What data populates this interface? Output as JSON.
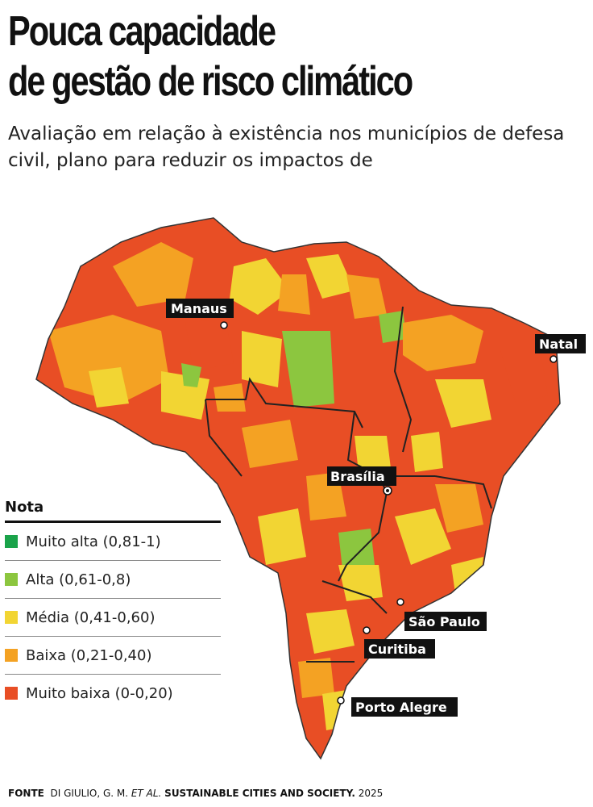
{
  "title_lines": [
    "Pouca capacidade",
    "de gestão de risco climático"
  ],
  "subtitle": "Avaliação em relação à existência nos municípios de defesa civil, plano para reduzir os impactos de",
  "legend": {
    "title": "Nota",
    "items": [
      {
        "label": "Muito alta (0,81-1)",
        "color": "#1aa34a"
      },
      {
        "label": "Alta (0,61-0,8)",
        "color": "#8cc63f"
      },
      {
        "label": "Média (0,41-0,60)",
        "color": "#f2d533"
      },
      {
        "label": "Baixa (0,21-0,40)",
        "color": "#f4a223"
      },
      {
        "label": "Muito baixa (0-0,20)",
        "color": "#e84e25"
      }
    ]
  },
  "cities": [
    "Manaus",
    "Natal",
    "Brasília",
    "São Paulo",
    "Curitiba",
    "Porto Alegre"
  ],
  "source": {
    "label": "FONTE",
    "authors": "DI GIULIO, G. M.",
    "etal": "ET AL.",
    "journal": "SUSTAINABLE CITIES AND SOCIETY.",
    "year": "2025"
  }
}
